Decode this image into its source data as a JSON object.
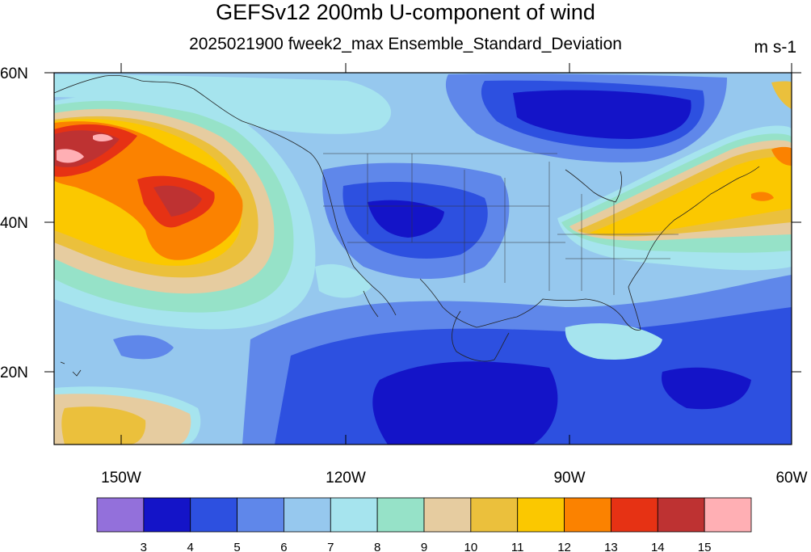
{
  "title": "GEFSv12 200mb U-component of wind",
  "subtitle": "2025021900 fweek2_max Ensemble_Standard_Deviation",
  "units": "m s-1",
  "map": {
    "lat_labels": [
      "60N",
      "40N",
      "20N"
    ],
    "lon_labels": [
      "150W",
      "120W",
      "90W",
      "60W"
    ]
  },
  "colorbar": {
    "colors": [
      "#9370db",
      "#1414c8",
      "#2d50e0",
      "#5f87ea",
      "#96c8ee",
      "#a6e4ee",
      "#96e2c8",
      "#e6cca0",
      "#ebc03c",
      "#fbc800",
      "#fb8200",
      "#e63214",
      "#be3232",
      "#ffafb4"
    ],
    "labels": [
      "3",
      "4",
      "5",
      "6",
      "7",
      "8",
      "9",
      "10",
      "11",
      "12",
      "13",
      "14",
      "15"
    ]
  }
}
